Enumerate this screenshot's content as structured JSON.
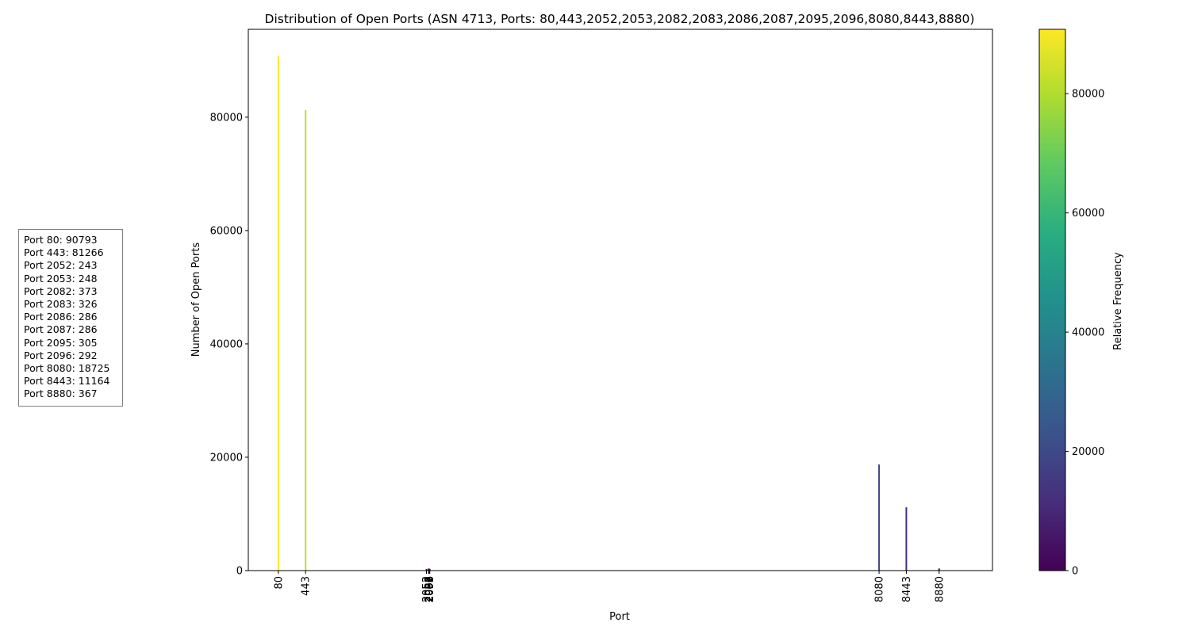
{
  "chart_data": {
    "type": "bar",
    "title": "Distribution of Open Ports (ASN 4713, Ports: 80,443,2052,2053,2082,2083,2086,2087,2095,2096,8080,8443,8880)",
    "xlabel": "Port",
    "ylabel": "Number of Open Ports",
    "colorbar_label": "Relative Frequency",
    "colormap": "viridis",
    "x": [
      80,
      443,
      2052,
      2053,
      2082,
      2083,
      2086,
      2087,
      2095,
      2096,
      8080,
      8443,
      8880
    ],
    "values": [
      90793,
      81266,
      243,
      248,
      373,
      326,
      286,
      286,
      305,
      292,
      18725,
      11164,
      367
    ],
    "xlim": [
      -320,
      9590
    ],
    "ylim": [
      0,
      95500
    ],
    "yticks": [
      0,
      20000,
      40000,
      60000,
      80000
    ],
    "xtick_labels": [
      "80",
      "443",
      "2052",
      "2053",
      "2082",
      "2083",
      "2086",
      "2087",
      "2095",
      "2096",
      "8080",
      "8443",
      "8880"
    ],
    "colorbar_range": [
      0,
      90793
    ],
    "colorbar_ticks": [
      0,
      20000,
      40000,
      60000,
      80000
    ],
    "grid": false,
    "annotation_lines": [
      "Port 80: 90793",
      "Port 443: 81266",
      "Port 2052: 243",
      "Port 2053: 248",
      "Port 2082: 373",
      "Port 2083: 326",
      "Port 2086: 286",
      "Port 2087: 286",
      "Port 2095: 305",
      "Port 2096: 292",
      "Port 8080: 18725",
      "Port 8443: 11164",
      "Port 8880: 367"
    ]
  }
}
